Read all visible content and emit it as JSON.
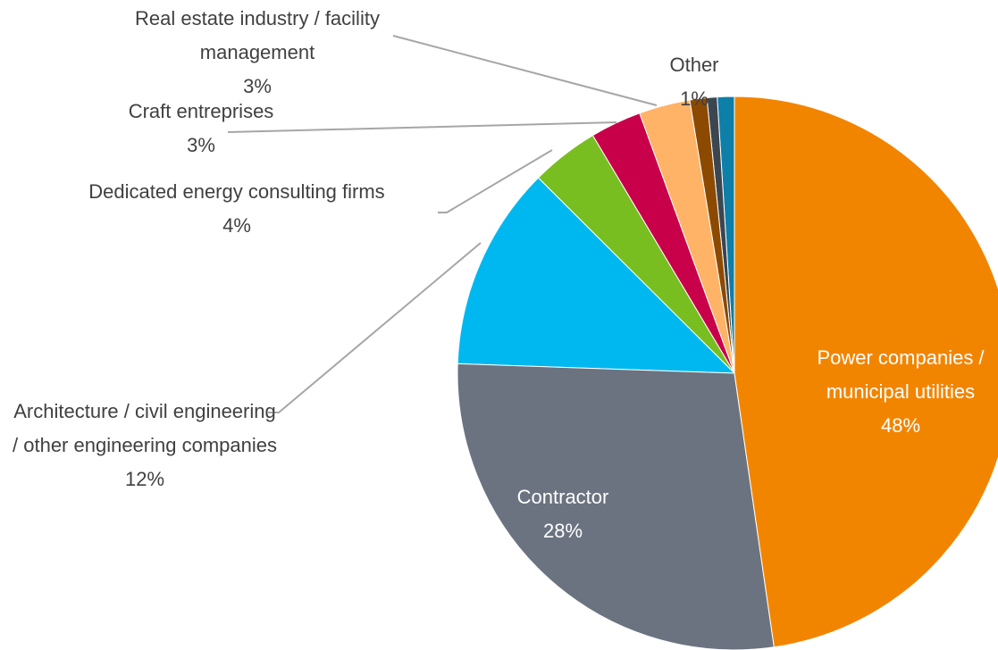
{
  "chart_data": {
    "type": "pie",
    "categories": [
      "Power companies / municipal utilities",
      "Contractor",
      "Architecture / civil engineering / other engineering companies",
      "Dedicated energy consulting firms",
      "Craft entreprises",
      "Real estate industry / facility management",
      null,
      null,
      "Other"
    ],
    "values": [
      48,
      28,
      12,
      4,
      3,
      3,
      1,
      0.6,
      1
    ],
    "value_labels": [
      "48%",
      "28%",
      "12%",
      "4%",
      "3%",
      "3%",
      null,
      null,
      "1%"
    ],
    "colors": [
      "#f28500",
      "#6b7380",
      "#00b8f0",
      "#78be20",
      "#c8004a",
      "#ffb366",
      "#8b4a00",
      "#3c4650",
      "#0e7fa8"
    ]
  }
}
